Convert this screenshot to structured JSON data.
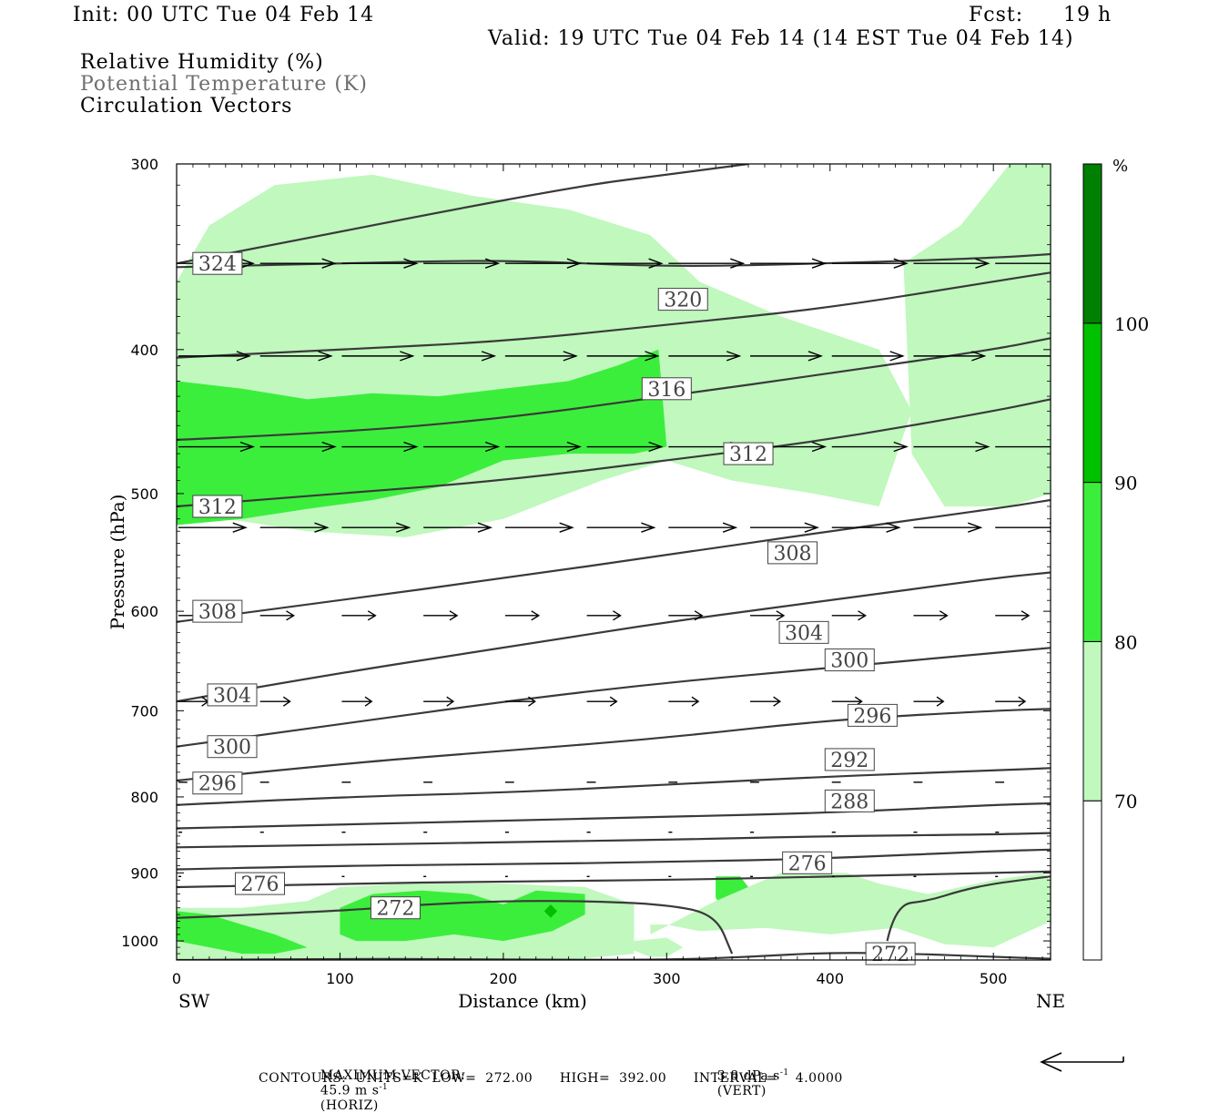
{
  "header": {
    "init": "Init: 00 UTC Tue 04 Feb 14",
    "fcst_label": "Fcst:",
    "fcst_value": "19 h",
    "valid": "Valid: 19 UTC Tue 04 Feb 14 (14 EST Tue 04 Feb 14)"
  },
  "legend": {
    "line1": "Relative Humidity (%)",
    "line2": "Potential Temperature (K)",
    "line3": "Circulation Vectors"
  },
  "chart_data": {
    "type": "cross-section",
    "xlabel": "Distance (km)",
    "ylabel": "Pressure (hPa)",
    "xlim": [
      0,
      535
    ],
    "ylim": [
      1030,
      300
    ],
    "y_scale": "log",
    "x_ticks": [
      0,
      100,
      200,
      300,
      400,
      500
    ],
    "y_ticks": [
      300,
      400,
      500,
      600,
      700,
      800,
      900,
      1000
    ],
    "x_end_labels": {
      "left": "SW",
      "right": "NE"
    },
    "grid": false,
    "colorbar": {
      "unit_label": "%",
      "levels": [
        {
          "label": "70",
          "color": "#ffffff"
        },
        {
          "label": "80",
          "color": "#c0f8be"
        },
        {
          "label": "90",
          "color": "#3cee3c"
        },
        {
          "label": "100",
          "color": "#00c000"
        },
        {
          "label": "",
          "color": "#008000"
        }
      ]
    },
    "rh_regions": [
      {
        "level": 80,
        "x": [
          0,
          20,
          60,
          120,
          180,
          240,
          290,
          320,
          370,
          430,
          450,
          430,
          390,
          340,
          300,
          260,
          200,
          140,
          80,
          30,
          0
        ],
        "p": [
          360,
          330,
          310,
          305,
          315,
          322,
          335,
          360,
          380,
          400,
          440,
          510,
          500,
          490,
          475,
          490,
          520,
          535,
          530,
          520,
          500
        ]
      },
      {
        "level": 80,
        "x": [
          445,
          480,
          510,
          535,
          535,
          510,
          470,
          450
        ],
        "p": [
          350,
          330,
          300,
          300,
          500,
          510,
          510,
          470
        ]
      },
      {
        "level": 90,
        "x": [
          0,
          40,
          80,
          120,
          160,
          200,
          240,
          270,
          295,
          300,
          280,
          240,
          200,
          160,
          120,
          80,
          40,
          0
        ],
        "p": [
          420,
          425,
          432,
          428,
          430,
          425,
          420,
          410,
          400,
          465,
          470,
          470,
          475,
          495,
          505,
          512,
          520,
          525
        ]
      },
      {
        "level": 80,
        "x": [
          0,
          40,
          80,
          100,
          140,
          200,
          250,
          280,
          280,
          240,
          180,
          130,
          80,
          40,
          0
        ],
        "p": [
          950,
          950,
          940,
          920,
          915,
          915,
          920,
          945,
          1020,
          1030,
          1030,
          1030,
          1030,
          1030,
          1030
        ]
      },
      {
        "level": 90,
        "x": [
          0,
          20,
          40,
          60,
          80,
          60,
          40,
          20,
          0
        ],
        "p": [
          955,
          960,
          975,
          990,
          1010,
          1020,
          1020,
          1010,
          1000
        ]
      },
      {
        "level": 90,
        "x": [
          100,
          120,
          150,
          180,
          200,
          220,
          250,
          250,
          230,
          200,
          170,
          140,
          110,
          100
        ],
        "p": [
          950,
          930,
          925,
          930,
          945,
          925,
          930,
          960,
          985,
          1000,
          990,
          1000,
          1000,
          990
        ]
      },
      {
        "level": 90,
        "x": [
          330,
          345,
          350,
          345,
          335,
          330
        ],
        "p": [
          905,
          905,
          920,
          955,
          955,
          935
        ]
      },
      {
        "level": 80,
        "x": [
          290,
          330,
          370,
          410,
          430,
          460,
          500,
          530,
          535,
          535,
          500,
          470,
          440,
          400,
          360,
          320,
          300,
          290
        ],
        "p": [
          990,
          940,
          900,
          900,
          915,
          930,
          910,
          900,
          910,
          970,
          1010,
          1005,
          980,
          990,
          980,
          985,
          975,
          975
        ]
      },
      {
        "level": 80,
        "x": [
          280,
          300,
          310,
          300,
          290,
          280
        ],
        "p": [
          1000,
          995,
          1010,
          1025,
          1025,
          1015
        ]
      },
      {
        "level": 100,
        "x": [
          120,
          125,
          130,
          125,
          120
        ],
        "p": [
          950,
          945,
          950,
          958,
          950
        ]
      },
      {
        "level": 100,
        "x": [
          225,
          229,
          233,
          229,
          225
        ],
        "p": [
          955,
          945,
          955,
          965,
          955
        ]
      }
    ],
    "theta_contours": [
      {
        "K": 324,
        "x": [
          0,
          60,
          150,
          250,
          300,
          350
        ],
        "p": [
          350,
          340,
          325,
          310,
          305,
          300
        ]
      },
      {
        "K": 320,
        "x": [
          0,
          100,
          200,
          300,
          400,
          500,
          535
        ],
        "p": [
          352,
          350,
          348,
          352,
          350,
          347,
          345
        ]
      },
      {
        "K": 316,
        "x": [
          0,
          100,
          200,
          300,
          400,
          500,
          535
        ],
        "p": [
          405,
          400,
          395,
          385,
          375,
          360,
          355
        ]
      },
      {
        "K": 312,
        "x": [
          0,
          100,
          200,
          300,
          400,
          500,
          535
        ],
        "p": [
          460,
          455,
          445,
          430,
          415,
          400,
          393
        ]
      },
      {
        "K": 308,
        "x": [
          0,
          100,
          200,
          300,
          400,
          500,
          535
        ],
        "p": [
          510,
          500,
          490,
          475,
          460,
          440,
          432
        ]
      },
      {
        "K": 304,
        "x": [
          0,
          100,
          200,
          300,
          400,
          500,
          535
        ],
        "p": [
          610,
          590,
          570,
          550,
          530,
          512,
          505
        ]
      },
      {
        "K": 300,
        "x": [
          0,
          100,
          200,
          300,
          400,
          500,
          535
        ],
        "p": [
          690,
          660,
          635,
          610,
          590,
          570,
          565
        ]
      },
      {
        "K": 296,
        "x": [
          0,
          100,
          200,
          300,
          400,
          500,
          535
        ],
        "p": [
          740,
          715,
          690,
          670,
          655,
          640,
          635
        ]
      },
      {
        "K": 292,
        "x": [
          0,
          100,
          200,
          300,
          400,
          500,
          535
        ],
        "p": [
          780,
          760,
          745,
          730,
          710,
          700,
          698
        ]
      },
      {
        "K": 288,
        "x": [
          0,
          100,
          200,
          300,
          400,
          500,
          535
        ],
        "p": [
          810,
          800,
          795,
          785,
          775,
          768,
          765
        ]
      },
      {
        "K": 284,
        "x": [
          0,
          100,
          200,
          300,
          400,
          500,
          535
        ],
        "p": [
          840,
          835,
          830,
          825,
          820,
          810,
          808
        ]
      },
      {
        "K": 280,
        "x": [
          0,
          100,
          200,
          300,
          400,
          500,
          535
        ],
        "p": [
          865,
          862,
          858,
          855,
          850,
          848,
          846
        ]
      },
      {
        "K": 276,
        "x": [
          0,
          100,
          200,
          300,
          400,
          500,
          535
        ],
        "p": [
          895,
          890,
          888,
          885,
          880,
          870,
          868
        ]
      },
      {
        "K": 276,
        "x": [
          0,
          100,
          200,
          300,
          400,
          500,
          535
        ],
        "p": [
          920,
          915,
          912,
          910,
          905,
          900,
          898
        ]
      },
      {
        "K": 272,
        "x": [
          0,
          100,
          150,
          200,
          250,
          300,
          330,
          340
        ],
        "p": [
          965,
          955,
          945,
          940,
          940,
          945,
          960,
          1020
        ]
      },
      {
        "K": 272,
        "x": [
          435,
          440,
          460,
          480,
          500,
          535
        ],
        "p": [
          1000,
          945,
          940,
          925,
          915,
          905
        ]
      },
      {
        "K": 272,
        "x": [
          0,
          100,
          200,
          300,
          350,
          400,
          450,
          500,
          535
        ],
        "p": [
          1030,
          1028,
          1029,
          1030,
          1025,
          1018,
          1020,
          1025,
          1028
        ]
      }
    ],
    "contour_labels": [
      {
        "text": "324",
        "x": 25,
        "p": 350
      },
      {
        "text": "320",
        "x": 310,
        "p": 370
      },
      {
        "text": "316",
        "x": 300,
        "p": 425
      },
      {
        "text": "312",
        "x": 350,
        "p": 470
      },
      {
        "text": "312",
        "x": 25,
        "p": 510
      },
      {
        "text": "308",
        "x": 377,
        "p": 548
      },
      {
        "text": "308",
        "x": 25,
        "p": 600
      },
      {
        "text": "304",
        "x": 384,
        "p": 620
      },
      {
        "text": "304",
        "x": 34,
        "p": 683
      },
      {
        "text": "300",
        "x": 412,
        "p": 647
      },
      {
        "text": "296",
        "x": 426,
        "p": 705
      },
      {
        "text": "300",
        "x": 34,
        "p": 740
      },
      {
        "text": "292",
        "x": 412,
        "p": 755
      },
      {
        "text": "296",
        "x": 25,
        "p": 783
      },
      {
        "text": "288",
        "x": 412,
        "p": 805
      },
      {
        "text": "276",
        "x": 386,
        "p": 886
      },
      {
        "text": "276",
        "x": 51,
        "p": 915
      },
      {
        "text": "272",
        "x": 134,
        "p": 950
      },
      {
        "text": "272",
        "x": 437,
        "p": 1020
      }
    ],
    "vector_rows": [
      {
        "p": 350,
        "u": 1.0
      },
      {
        "p": 404,
        "u": 0.95
      },
      {
        "p": 465,
        "u": 1.0
      },
      {
        "p": 527,
        "u": 0.9
      },
      {
        "p": 604,
        "u": 0.45
      },
      {
        "p": 690,
        "u": 0.4
      },
      {
        "p": 782,
        "u": 0.12
      },
      {
        "p": 845,
        "u": 0.05
      },
      {
        "p": 905,
        "u": 0.02
      }
    ],
    "vector_x": [
      0,
      50,
      100,
      150,
      200,
      250,
      300,
      350,
      400,
      450,
      500
    ],
    "reference_vector_direction": "left"
  },
  "footer": {
    "max_vector_label": "MAXIMUM VECTOR:",
    "max_horiz_value": "45.9 m s",
    "max_horiz_exp": "-1",
    "max_horiz_tag": "(HORIZ)",
    "max_vert_value": "3.8 dPa s",
    "max_vert_exp": "-1",
    "max_vert_tag": "(VERT)",
    "contours": "CONTOURS:  UNITS=K  LOW=  272.00      HIGH=  392.00      INTERVAL=    4.0000"
  }
}
